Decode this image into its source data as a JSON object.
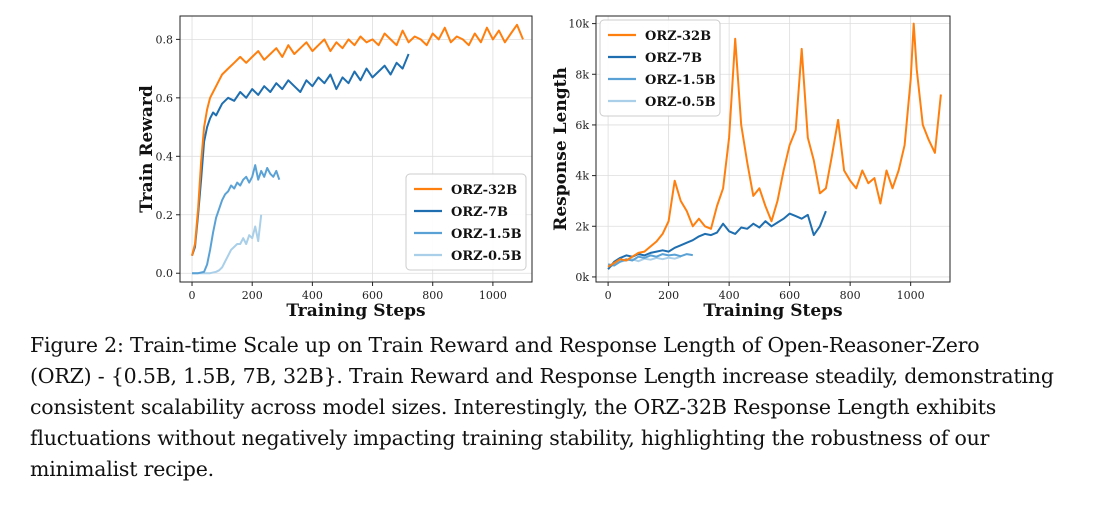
{
  "caption": "Figure 2: Train-time Scale up on Train Reward and Response Length of Open-Reasoner-Zero\n(ORZ) - {0.5B, 1.5B, 7B, 32B}. Train Reward and Response Length increase steadily, demonstrating\nconsistent scalability across model sizes. Interestingly, the ORZ-32B Response Length exhibits\nfluctuations without negatively impacting training stability, highlighting the robustness of our\nminimalist recipe.",
  "colors": {
    "ORZ-32B": "#ff7f0e",
    "ORZ-7B": "#1f6fb0",
    "ORZ-1.5B": "#5aa2d6",
    "ORZ-0.5B": "#a9cfe9",
    "grid": "#dddddd",
    "frame": "#222222"
  },
  "chart_data": [
    {
      "type": "line",
      "xlabel": "Training Steps",
      "ylabel": "Train Reward",
      "xlim": [
        -40,
        1130
      ],
      "ylim": [
        -0.03,
        0.88
      ],
      "xticks": [
        0,
        200,
        400,
        600,
        800,
        1000
      ],
      "xtick_labels": [
        "0",
        "200",
        "400",
        "600",
        "800",
        "1000"
      ],
      "yticks": [
        0.0,
        0.2,
        0.4,
        0.6,
        0.8
      ],
      "ytick_labels": [
        "0.0",
        "0.2",
        "0.4",
        "0.6",
        "0.8"
      ],
      "grid": true,
      "legend_position": "bottom-right",
      "series": [
        {
          "name": "ORZ-32B",
          "x": [
            0,
            10,
            20,
            30,
            40,
            50,
            60,
            70,
            80,
            90,
            100,
            120,
            140,
            160,
            180,
            200,
            220,
            240,
            260,
            280,
            300,
            320,
            340,
            360,
            380,
            400,
            420,
            440,
            460,
            480,
            500,
            520,
            540,
            560,
            580,
            600,
            620,
            640,
            660,
            680,
            700,
            720,
            740,
            760,
            780,
            800,
            820,
            840,
            860,
            880,
            900,
            920,
            940,
            960,
            980,
            1000,
            1020,
            1040,
            1060,
            1080,
            1100
          ],
          "y": [
            0.06,
            0.1,
            0.22,
            0.38,
            0.5,
            0.56,
            0.6,
            0.62,
            0.64,
            0.66,
            0.68,
            0.7,
            0.72,
            0.74,
            0.72,
            0.74,
            0.76,
            0.73,
            0.75,
            0.77,
            0.74,
            0.78,
            0.75,
            0.77,
            0.79,
            0.76,
            0.78,
            0.8,
            0.76,
            0.79,
            0.77,
            0.8,
            0.78,
            0.81,
            0.79,
            0.8,
            0.78,
            0.82,
            0.8,
            0.78,
            0.83,
            0.79,
            0.81,
            0.8,
            0.78,
            0.82,
            0.8,
            0.84,
            0.79,
            0.81,
            0.8,
            0.78,
            0.82,
            0.79,
            0.84,
            0.8,
            0.83,
            0.79,
            0.82,
            0.85,
            0.8
          ]
        },
        {
          "name": "ORZ-7B",
          "x": [
            0,
            10,
            20,
            30,
            40,
            50,
            60,
            70,
            80,
            90,
            100,
            120,
            140,
            160,
            180,
            200,
            220,
            240,
            260,
            280,
            300,
            320,
            340,
            360,
            380,
            400,
            420,
            440,
            460,
            480,
            500,
            520,
            540,
            560,
            580,
            600,
            620,
            640,
            660,
            680,
            700,
            720
          ],
          "y": [
            0.06,
            0.09,
            0.2,
            0.32,
            0.45,
            0.5,
            0.53,
            0.55,
            0.54,
            0.56,
            0.58,
            0.6,
            0.59,
            0.62,
            0.6,
            0.63,
            0.61,
            0.64,
            0.62,
            0.65,
            0.63,
            0.66,
            0.64,
            0.62,
            0.66,
            0.64,
            0.67,
            0.65,
            0.68,
            0.63,
            0.67,
            0.65,
            0.69,
            0.66,
            0.7,
            0.67,
            0.69,
            0.71,
            0.68,
            0.72,
            0.7,
            0.75
          ]
        },
        {
          "name": "ORZ-1.5B",
          "x": [
            0,
            20,
            40,
            50,
            60,
            70,
            80,
            90,
            100,
            110,
            120,
            130,
            140,
            150,
            160,
            170,
            180,
            190,
            200,
            210,
            220,
            230,
            240,
            250,
            260,
            270,
            280,
            290
          ],
          "y": [
            0.0,
            0.0,
            0.005,
            0.03,
            0.08,
            0.14,
            0.19,
            0.22,
            0.25,
            0.27,
            0.28,
            0.3,
            0.29,
            0.31,
            0.3,
            0.32,
            0.33,
            0.31,
            0.33,
            0.37,
            0.32,
            0.35,
            0.33,
            0.36,
            0.34,
            0.33,
            0.35,
            0.32
          ]
        },
        {
          "name": "ORZ-0.5B",
          "x": [
            0,
            20,
            40,
            60,
            80,
            90,
            100,
            110,
            120,
            130,
            140,
            150,
            160,
            170,
            180,
            190,
            200,
            210,
            220,
            230
          ],
          "y": [
            0.0,
            0.0,
            0.0,
            0.0,
            0.005,
            0.01,
            0.02,
            0.04,
            0.06,
            0.08,
            0.09,
            0.1,
            0.1,
            0.12,
            0.1,
            0.13,
            0.12,
            0.16,
            0.11,
            0.2
          ]
        }
      ]
    },
    {
      "type": "line",
      "xlabel": "Training Steps",
      "ylabel": "Response Length",
      "xlim": [
        -40,
        1130
      ],
      "ylim": [
        -200,
        10300
      ],
      "xticks": [
        0,
        200,
        400,
        600,
        800,
        1000
      ],
      "xtick_labels": [
        "0",
        "200",
        "400",
        "600",
        "800",
        "1000"
      ],
      "yticks": [
        0,
        2000,
        4000,
        6000,
        8000,
        10000
      ],
      "ytick_labels": [
        "0k",
        "2k",
        "4k",
        "6k",
        "8k",
        "10k"
      ],
      "grid": true,
      "legend_position": "top-left",
      "series": [
        {
          "name": "ORZ-32B",
          "x": [
            0,
            20,
            40,
            60,
            80,
            100,
            120,
            140,
            160,
            180,
            200,
            220,
            240,
            260,
            280,
            300,
            320,
            340,
            360,
            380,
            400,
            420,
            440,
            460,
            480,
            500,
            520,
            540,
            560,
            580,
            600,
            620,
            640,
            660,
            680,
            700,
            720,
            740,
            760,
            780,
            800,
            820,
            840,
            860,
            880,
            900,
            920,
            940,
            960,
            980,
            1000,
            1010,
            1020,
            1040,
            1060,
            1080,
            1100
          ],
          "y": [
            400,
            550,
            700,
            650,
            800,
            950,
            1000,
            1200,
            1400,
            1700,
            2200,
            3800,
            3000,
            2600,
            2000,
            2300,
            2000,
            1900,
            2800,
            3500,
            5500,
            9400,
            6000,
            4500,
            3200,
            3500,
            2800,
            2200,
            3000,
            4200,
            5200,
            5800,
            9000,
            5500,
            4600,
            3300,
            3500,
            4800,
            6200,
            4200,
            3800,
            3500,
            4200,
            3700,
            3900,
            2900,
            4200,
            3500,
            4200,
            5200,
            7800,
            10000,
            8200,
            6000,
            5400,
            4900,
            7200
          ]
        },
        {
          "name": "ORZ-7B",
          "x": [
            0,
            20,
            40,
            60,
            80,
            100,
            120,
            140,
            160,
            180,
            200,
            220,
            240,
            260,
            280,
            300,
            320,
            340,
            360,
            380,
            400,
            420,
            440,
            460,
            480,
            500,
            520,
            540,
            560,
            580,
            600,
            620,
            640,
            660,
            680,
            700,
            720
          ],
          "y": [
            300,
            600,
            750,
            850,
            800,
            900,
            850,
            950,
            1000,
            1050,
            1000,
            1150,
            1250,
            1350,
            1450,
            1600,
            1700,
            1650,
            1750,
            2100,
            1800,
            1700,
            1950,
            1900,
            2100,
            1950,
            2200,
            2000,
            2150,
            2300,
            2500,
            2400,
            2300,
            2450,
            1650,
            2000,
            2600
          ]
        },
        {
          "name": "ORZ-1.5B",
          "x": [
            0,
            20,
            40,
            60,
            80,
            100,
            120,
            140,
            160,
            180,
            200,
            220,
            240,
            260,
            280
          ],
          "y": [
            500,
            450,
            600,
            700,
            650,
            800,
            750,
            850,
            800,
            900,
            850,
            880,
            820,
            900,
            860
          ]
        },
        {
          "name": "ORZ-0.5B",
          "x": [
            0,
            20,
            40,
            60,
            80,
            100,
            120,
            140,
            160,
            180,
            200,
            220,
            240
          ],
          "y": [
            350,
            500,
            600,
            650,
            700,
            620,
            720,
            680,
            750,
            700,
            760,
            720,
            800
          ]
        }
      ]
    }
  ]
}
